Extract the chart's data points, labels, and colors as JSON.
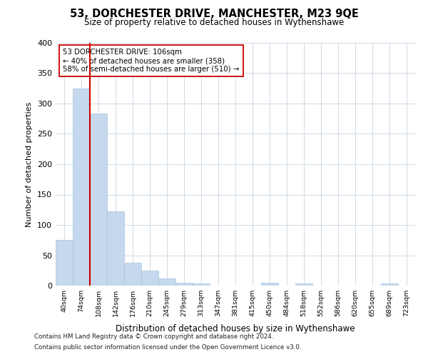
{
  "title": "53, DORCHESTER DRIVE, MANCHESTER, M23 9QE",
  "subtitle": "Size of property relative to detached houses in Wythenshawe",
  "xlabel": "Distribution of detached houses by size in Wythenshawe",
  "ylabel": "Number of detached properties",
  "footnote1": "Contains HM Land Registry data © Crown copyright and database right 2024.",
  "footnote2": "Contains public sector information licensed under the Open Government Licence v3.0.",
  "bar_color": "#c5d8ed",
  "bar_edge_color": "#a8c4de",
  "grid_color": "#c8d4e0",
  "annotation_box_color": "#cc0000",
  "property_line_color": "#cc0000",
  "categories": [
    "40sqm",
    "74sqm",
    "108sqm",
    "142sqm",
    "176sqm",
    "210sqm",
    "245sqm",
    "279sqm",
    "313sqm",
    "347sqm",
    "381sqm",
    "415sqm",
    "450sqm",
    "484sqm",
    "518sqm",
    "552sqm",
    "586sqm",
    "620sqm",
    "655sqm",
    "689sqm",
    "723sqm"
  ],
  "values": [
    75,
    325,
    283,
    122,
    38,
    25,
    12,
    5,
    4,
    0,
    0,
    0,
    5,
    0,
    3,
    0,
    0,
    0,
    0,
    3,
    0
  ],
  "property_label": "53 DORCHESTER DRIVE: 106sqm",
  "pct_smaller": 40,
  "n_smaller": 358,
  "pct_larger": 58,
  "n_larger": 510,
  "property_line_x": 1.5,
  "ylim": [
    0,
    400
  ],
  "yticks": [
    0,
    50,
    100,
    150,
    200,
    250,
    300,
    350,
    400
  ],
  "figsize": [
    6.0,
    5.0
  ],
  "dpi": 100
}
